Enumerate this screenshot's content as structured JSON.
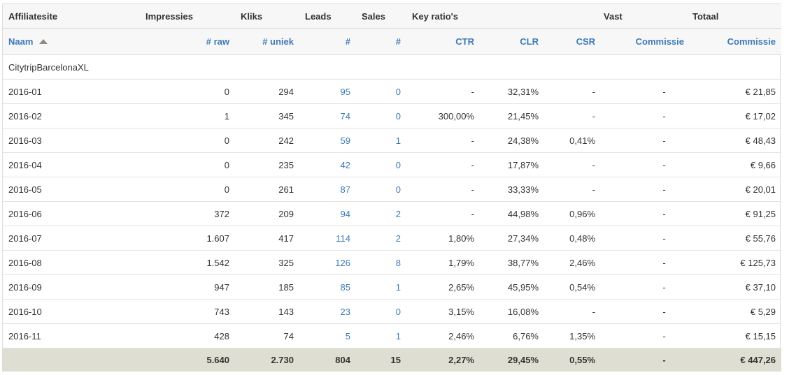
{
  "group_headers": [
    "Affiliatesite",
    "Impressies",
    "Kliks",
    "Leads",
    "Sales",
    "Key ratio's",
    "Vast",
    "Totaal"
  ],
  "column_headers": [
    "Naam",
    "# raw",
    "# uniek",
    "#",
    "#",
    "CTR",
    "CLR",
    "CSR",
    "Commissie",
    "Commissie"
  ],
  "site_name": "CitytripBarcelonaXL",
  "rows": [
    [
      "2016-01",
      "0",
      "294",
      "95",
      "0",
      "-",
      "32,31%",
      "-",
      "-",
      "€ 21,85"
    ],
    [
      "2016-02",
      "1",
      "345",
      "74",
      "0",
      "300,00%",
      "21,45%",
      "-",
      "-",
      "€ 17,02"
    ],
    [
      "2016-03",
      "0",
      "242",
      "59",
      "1",
      "-",
      "24,38%",
      "0,41%",
      "-",
      "€ 48,43"
    ],
    [
      "2016-04",
      "0",
      "235",
      "42",
      "0",
      "-",
      "17,87%",
      "-",
      "-",
      "€ 9,66"
    ],
    [
      "2016-05",
      "0",
      "261",
      "87",
      "0",
      "-",
      "33,33%",
      "-",
      "-",
      "€ 20,01"
    ],
    [
      "2016-06",
      "372",
      "209",
      "94",
      "2",
      "-",
      "44,98%",
      "0,96%",
      "-",
      "€ 91,25"
    ],
    [
      "2016-07",
      "1.607",
      "417",
      "114",
      "2",
      "1,80%",
      "27,34%",
      "0,48%",
      "-",
      "€ 55,76"
    ],
    [
      "2016-08",
      "1.542",
      "325",
      "126",
      "8",
      "1,79%",
      "38,77%",
      "2,46%",
      "-",
      "€ 125,73"
    ],
    [
      "2016-09",
      "947",
      "185",
      "85",
      "1",
      "2,65%",
      "45,95%",
      "0,54%",
      "-",
      "€ 37,10"
    ],
    [
      "2016-10",
      "743",
      "143",
      "23",
      "0",
      "3,15%",
      "16,08%",
      "-",
      "-",
      "€ 5,29"
    ],
    [
      "2016-11",
      "428",
      "74",
      "5",
      "1",
      "2,46%",
      "6,76%",
      "1,35%",
      "-",
      "€ 15,15"
    ]
  ],
  "totals": [
    "",
    "5.640",
    "2.730",
    "804",
    "15",
    "2,27%",
    "29,45%",
    "0,55%",
    "-",
    "€ 447,26"
  ],
  "colors": {
    "link": "#3d7ab8",
    "header_bg": "#f7f7f7",
    "total_bg": "#deded3",
    "border": "#dcdcdc"
  }
}
